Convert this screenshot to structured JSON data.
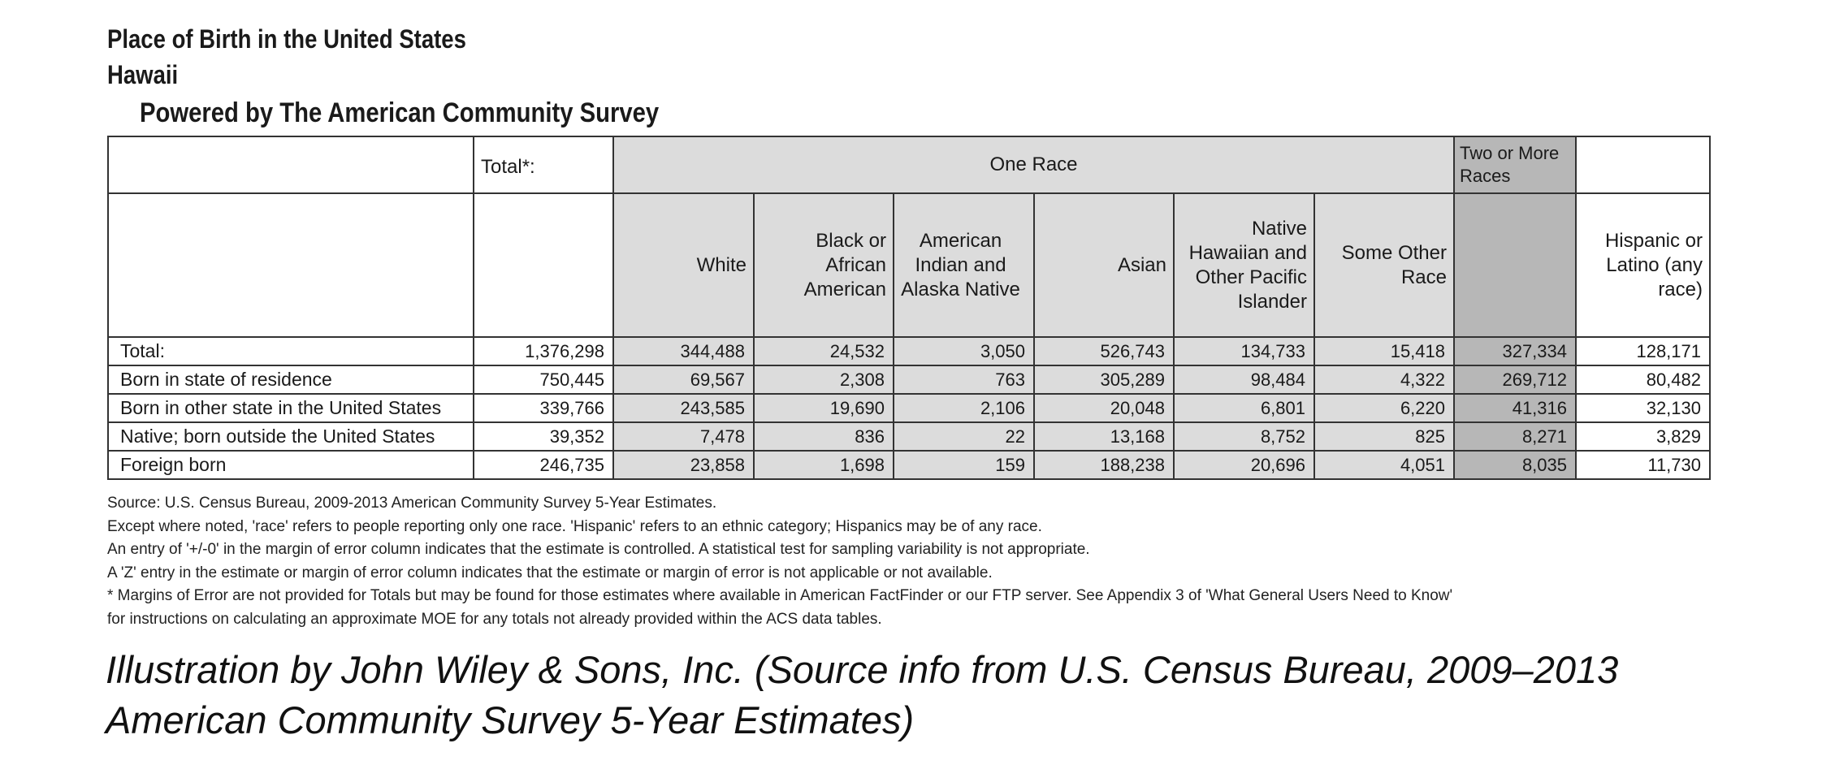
{
  "header": {
    "title": "Place of Birth in the United States",
    "subtitle": "Hawaii",
    "powered_by": "Powered by The American Community Survey"
  },
  "table": {
    "total_header": "Total*:",
    "one_race_header": "One Race",
    "two_or_more_header": "Two or More Races",
    "columns": [
      "White",
      "Black or African American",
      "American Indian and Alaska Native",
      "Asian",
      "Native Hawaiian and Other Pacific Islander",
      "Some Other Race",
      "Hispanic or Latino (any race)"
    ],
    "rows": [
      {
        "label": "Total:",
        "values": [
          "1,376,298",
          "344,488",
          "24,532",
          "3,050",
          "526,743",
          "134,733",
          "15,418",
          "327,334",
          "128,171"
        ]
      },
      {
        "label": "Born in state of residence",
        "values": [
          "750,445",
          "69,567",
          "2,308",
          "763",
          "305,289",
          "98,484",
          "4,322",
          "269,712",
          "80,482"
        ]
      },
      {
        "label": "Born in other state in the United States",
        "values": [
          "339,766",
          "243,585",
          "19,690",
          "2,106",
          "20,048",
          "6,801",
          "6,220",
          "41,316",
          "32,130"
        ]
      },
      {
        "label": "Native; born outside the United States",
        "values": [
          "39,352",
          "7,478",
          "836",
          "22",
          "13,168",
          "8,752",
          "825",
          "8,271",
          "3,829"
        ]
      },
      {
        "label": "Foreign born",
        "values": [
          "246,735",
          "23,858",
          "1,698",
          "159",
          "188,238",
          "20,696",
          "4,051",
          "8,035",
          "11,730"
        ]
      }
    ]
  },
  "notes": [
    "Source: U.S. Census Bureau, 2009-2013 American Community Survey 5-Year Estimates.",
    "Except where noted, 'race' refers to people reporting only one race. 'Hispanic' refers to an ethnic category; Hispanics may be of any race.",
    "An entry of '+/-0' in the margin of error column indicates that the estimate is controlled. A statistical test for sampling variability is not appropriate.",
    "A 'Z' entry in the estimate or margin of error column indicates that the estimate or margin of error is not applicable or not available.",
    "* Margins of Error are not provided for Totals but may be found for those estimates where available in American FactFinder or our FTP server. See Appendix 3 of 'What General Users Need to Know'",
    "for instructions on calculating an approximate MOE for any totals not already provided within the ACS data tables."
  ],
  "credit": [
    "Illustration by John Wiley & Sons, Inc. (Source info from U.S. Census Bureau, 2009–2013",
    "American Community Survey 5-Year Estimates)"
  ]
}
